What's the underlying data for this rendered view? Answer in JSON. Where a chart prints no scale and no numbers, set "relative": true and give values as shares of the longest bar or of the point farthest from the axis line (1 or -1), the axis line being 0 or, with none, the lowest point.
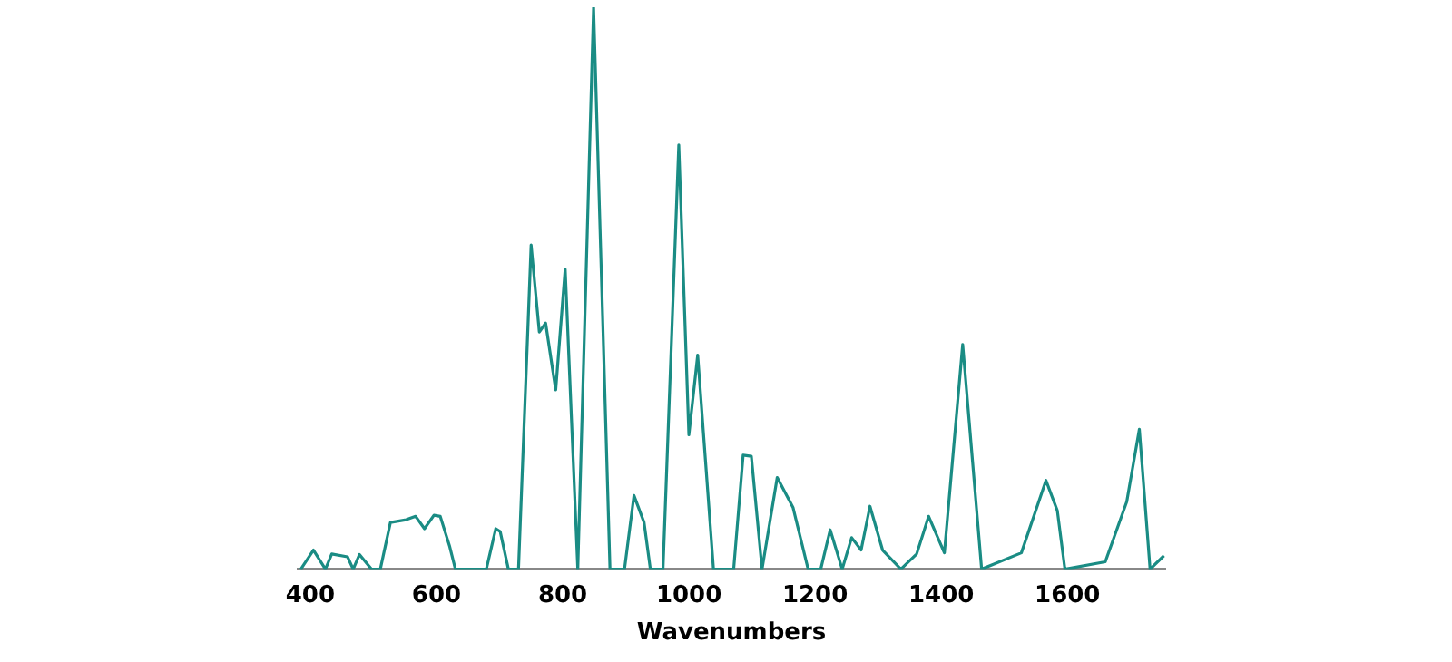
{
  "chart_data": {
    "type": "line",
    "xlabel": "Wavenumbers",
    "relative": true,
    "xlim": [
      380,
      1755
    ],
    "xticks": [
      400,
      600,
      800,
      1000,
      1200,
      1400,
      1600
    ],
    "grid": false,
    "legend": false,
    "marker": "none",
    "line_style": "solid",
    "x": [
      385,
      405,
      424,
      434,
      459,
      468,
      478,
      497,
      511,
      527,
      552,
      567,
      581,
      596,
      606,
      621,
      630,
      679,
      694,
      701,
      714,
      730,
      750,
      763,
      773,
      789,
      804,
      824,
      849,
      875,
      898,
      913,
      929,
      939,
      959,
      984,
      1000,
      1014,
      1039,
      1057,
      1071,
      1086,
      1099,
      1116,
      1140,
      1165,
      1189,
      1209,
      1224,
      1243,
      1258,
      1273,
      1287,
      1307,
      1336,
      1361,
      1380,
      1405,
      1434,
      1464,
      1527,
      1566,
      1584,
      1596,
      1660,
      1694,
      1714,
      1731,
      1753
    ],
    "series": [
      {
        "color": "#1a8c84",
        "values": [
          0,
          0.034,
          0,
          0.027,
          0.022,
          0,
          0.026,
          0,
          0,
          0.083,
          0.088,
          0.094,
          0.072,
          0.096,
          0.094,
          0.04,
          0,
          0,
          0.072,
          0.067,
          0,
          0,
          0.577,
          0.422,
          0.438,
          0.319,
          0.534,
          0,
          1,
          0,
          0,
          0.131,
          0.083,
          0,
          0,
          0.755,
          0.239,
          0.381,
          0,
          0,
          0,
          0.203,
          0.201,
          0,
          0.163,
          0.11,
          0,
          0,
          0.07,
          0,
          0.056,
          0.034,
          0.112,
          0.034,
          0,
          0.027,
          0.094,
          0.029,
          0.4,
          0,
          0.029,
          0.158,
          0.104,
          0,
          0.013,
          0.12,
          0.249,
          0,
          0.024
        ]
      }
    ]
  }
}
